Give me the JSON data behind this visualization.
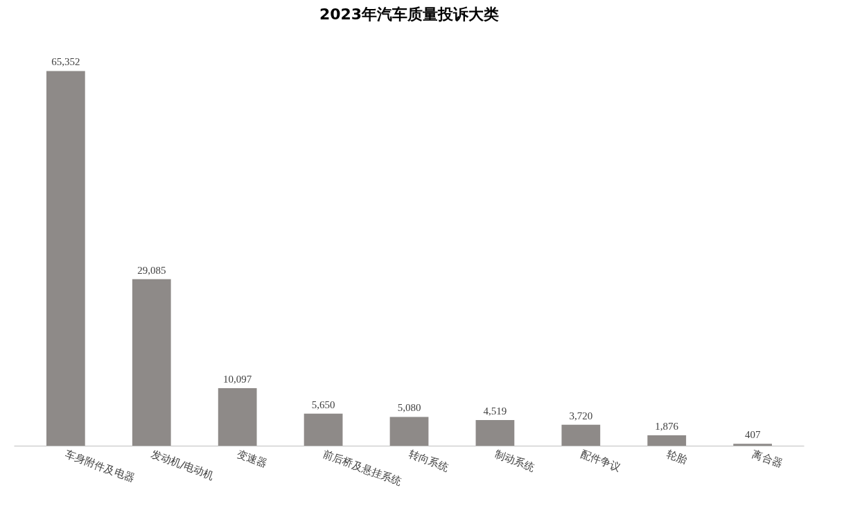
{
  "chart_data": {
    "type": "bar",
    "title": "2023年汽车质量投诉大类",
    "categories": [
      "车身附件及电器",
      "发动机/电动机",
      "变速器",
      "前后桥及悬挂系统",
      "转向系统",
      "制动系统",
      "配件争议",
      "轮胎",
      "离合器"
    ],
    "values": [
      65352,
      29085,
      10097,
      5650,
      5080,
      4519,
      3720,
      1876,
      407
    ],
    "value_labels": [
      "65,352",
      "29,085",
      "10,097",
      "5,650",
      "5,080",
      "4,519",
      "3,720",
      "1,876",
      "407"
    ],
    "color": "#8e8a88"
  }
}
